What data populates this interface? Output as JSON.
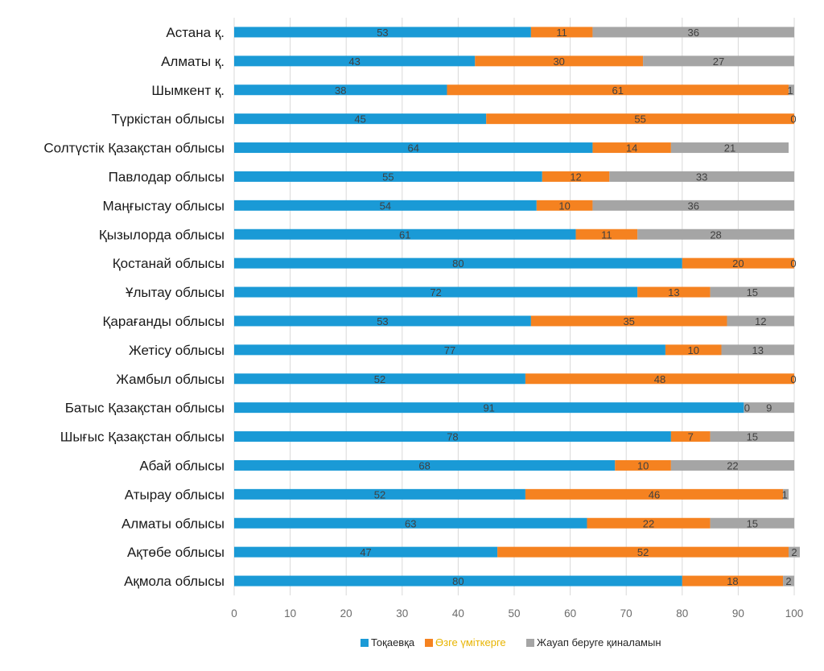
{
  "chart_data": {
    "type": "bar",
    "orientation": "horizontal",
    "stacked": true,
    "title": "",
    "xlabel": "",
    "ylabel": "",
    "xlim": [
      0,
      100
    ],
    "xticks": [
      0,
      10,
      20,
      30,
      40,
      50,
      60,
      70,
      80,
      90,
      100
    ],
    "grid": true,
    "legend_position": "bottom",
    "categories": [
      "Астана қ.",
      "Алматы қ.",
      "Шымкент қ.",
      "Түркістан облысы",
      "Солтүстік Қазақстан облысы",
      "Павлодар облысы",
      "Маңғыстау облысы",
      "Қызылорда облысы",
      "Қостанай облысы",
      "Ұлытау облысы",
      "Қарағанды облысы",
      "Жетісу облысы",
      "Жамбыл облысы",
      "Батыс Қазақстан облысы",
      "Шығыс Қазақстан облысы",
      "Абай облысы",
      "Атырау облысы",
      "Алматы облысы",
      "Ақтөбе облысы",
      "Ақмола облысы"
    ],
    "series": [
      {
        "name": "Тоқаевқа",
        "color": "#1a9ad6",
        "values": [
          53,
          43,
          38,
          45,
          64,
          55,
          54,
          61,
          80,
          72,
          53,
          77,
          52,
          91,
          78,
          68,
          52,
          63,
          47,
          80
        ]
      },
      {
        "name": "Өзге үміткерге",
        "color": "#f58220",
        "legend_text_color": "#e8b400",
        "values": [
          11,
          30,
          61,
          55,
          14,
          12,
          10,
          11,
          20,
          13,
          35,
          10,
          48,
          0,
          7,
          10,
          46,
          22,
          52,
          18
        ]
      },
      {
        "name": "Жауап беруге қиналамын",
        "color": "#a5a5a5",
        "values": [
          36,
          27,
          1,
          0,
          21,
          33,
          36,
          28,
          0,
          15,
          12,
          13,
          0,
          9,
          15,
          22,
          1,
          15,
          2,
          2
        ]
      }
    ]
  }
}
